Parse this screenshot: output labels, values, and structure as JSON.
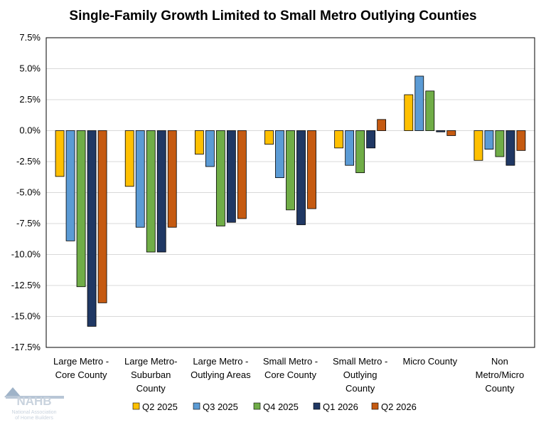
{
  "chart_data": {
    "type": "bar",
    "title": "Single-Family Growth Limited to Small Metro Outlying Counties",
    "xlabel": "",
    "ylabel": "",
    "ylim": [
      -17.5,
      7.5
    ],
    "yticks": [
      "7.5%",
      "5.0%",
      "2.5%",
      "0.0%",
      "-2.5%",
      "-5.0%",
      "-7.5%",
      "-10.0%",
      "-12.5%",
      "-15.0%",
      "-17.5%"
    ],
    "ytick_values": [
      7.5,
      5.0,
      2.5,
      0,
      -2.5,
      -5.0,
      -7.5,
      -10.0,
      -12.5,
      -15.0,
      -17.5
    ],
    "grid": true,
    "legend_position": "bottom",
    "categories": [
      [
        "Large Metro -",
        "Core County"
      ],
      [
        "Large Metro-",
        "Suburban",
        "County"
      ],
      [
        "Large Metro -",
        "Outlying Areas"
      ],
      [
        "Small Metro -",
        "Core County"
      ],
      [
        "Small Metro -",
        "Outlying",
        "County"
      ],
      [
        "Micro County"
      ],
      [
        "Non",
        "Metro/Micro",
        "County"
      ]
    ],
    "series": [
      {
        "name": "Q2 2025",
        "color": "#FFC000",
        "values": [
          -3.7,
          -4.5,
          -1.9,
          -1.1,
          -1.4,
          2.9,
          -2.4
        ]
      },
      {
        "name": "Q3 2025",
        "color": "#5B9BD5",
        "values": [
          -8.9,
          -7.8,
          -2.9,
          -3.8,
          -2.8,
          4.4,
          -1.5
        ]
      },
      {
        "name": "Q4 2025",
        "color": "#70AD47",
        "values": [
          -12.6,
          -9.8,
          -7.7,
          -6.4,
          -3.4,
          3.2,
          -2.1
        ]
      },
      {
        "name": "Q1 2026",
        "color": "#203864",
        "values": [
          -15.8,
          -9.8,
          -7.4,
          -7.6,
          -1.4,
          -0.1,
          -2.8
        ]
      },
      {
        "name": "Q2 2026",
        "color": "#C55A11",
        "values": [
          -13.9,
          -7.8,
          -7.1,
          -6.3,
          0.9,
          -0.4,
          -1.6
        ]
      }
    ]
  },
  "logo": {
    "name": "NAHB",
    "subtitle_lines": [
      "National Association",
      "of Home Builders"
    ]
  }
}
